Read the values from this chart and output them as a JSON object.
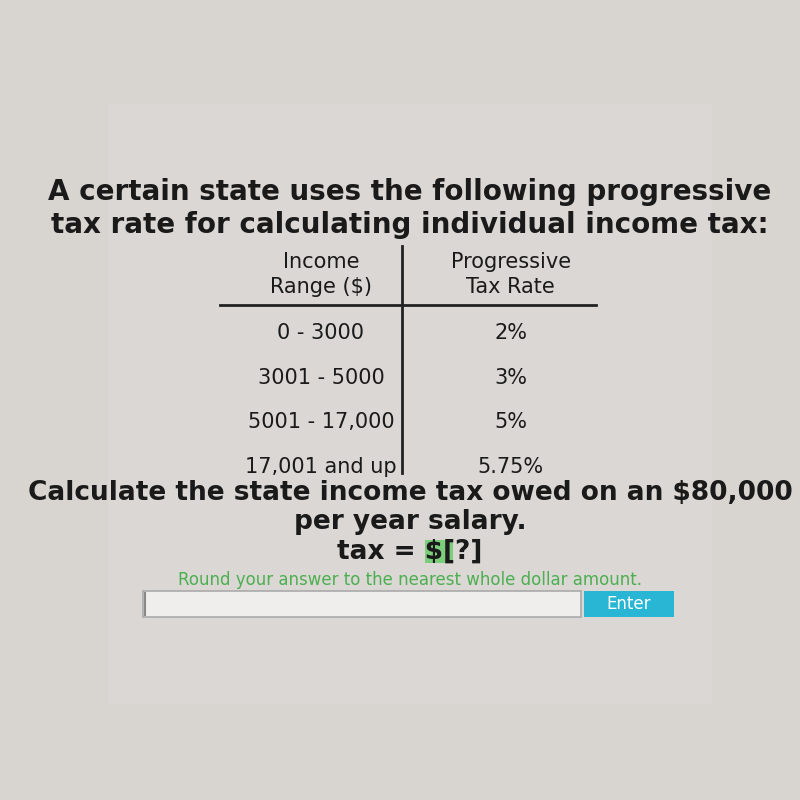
{
  "title_line1": "A certain state uses the following progressive",
  "title_line2": "tax rate for calculating individual income tax:",
  "col1_header_line1": "Income",
  "col1_header_line2": "Range ($)",
  "col2_header_line1": "Progressive",
  "col2_header_line2": "Tax Rate",
  "table_rows": [
    [
      "0 - 3000",
      "2%"
    ],
    [
      "3001 - 5000",
      "3%"
    ],
    [
      "5001 - 17,000",
      "5%"
    ],
    [
      "17,001 and up",
      "5.75%"
    ]
  ],
  "question_line1": "Calculate the state income tax owed on an $80,000",
  "question_line2": "per year salary.",
  "tax_prefix": "tax = $",
  "tax_bracket": "[?]",
  "round_note": "Round your answer to the nearest whole dollar amount.",
  "enter_btn_text": "Enter",
  "bg_color": "#d8d4d0",
  "table_line_color": "#222222",
  "text_color": "#1a1a1a",
  "green_color": "#4CAF50",
  "green_highlight": "#7CCD7C",
  "enter_btn_color": "#29b6d4",
  "enter_btn_text_color": "#ffffff",
  "input_bg": "#f0eeec",
  "input_border": "#aaaaaa"
}
